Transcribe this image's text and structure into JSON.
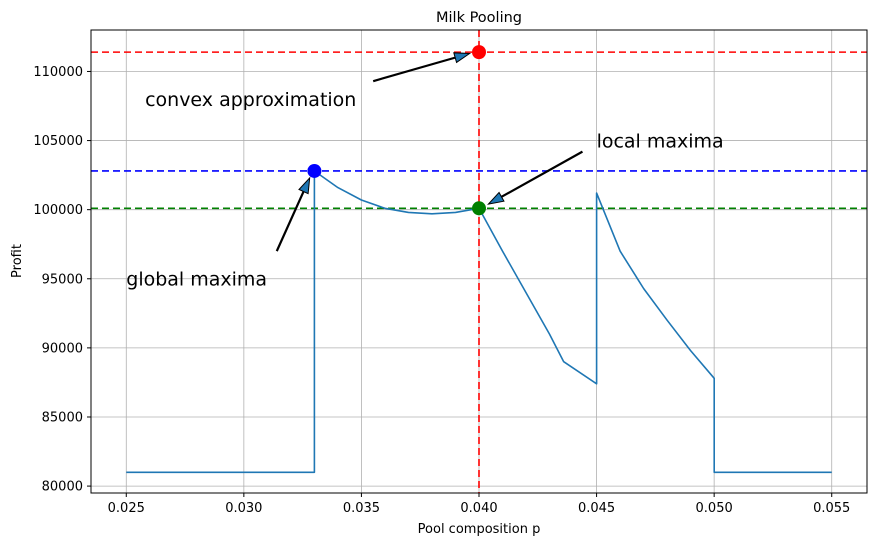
{
  "chart_data": {
    "type": "line",
    "title": "Milk Pooling",
    "xlabel": "Pool composition p",
    "ylabel": "Profit",
    "xlim": [
      0.0235,
      0.0565
    ],
    "ylim": [
      79500,
      113000
    ],
    "grid": true,
    "xticks": [
      0.025,
      0.03,
      0.035,
      0.04,
      0.045,
      0.05,
      0.055
    ],
    "xtick_labels": [
      "0.025",
      "0.030",
      "0.035",
      "0.040",
      "0.045",
      "0.050",
      "0.055"
    ],
    "yticks": [
      80000,
      85000,
      90000,
      95000,
      100000,
      105000,
      110000
    ],
    "ytick_labels": [
      "80000",
      "85000",
      "90000",
      "95000",
      "100000",
      "105000",
      "110000"
    ],
    "series": [
      {
        "color": "#1f77b4",
        "x": [
          0.025,
          0.033,
          0.033,
          0.034,
          0.035,
          0.036,
          0.037,
          0.038,
          0.039,
          0.04,
          0.041,
          0.042,
          0.043,
          0.0436,
          0.045,
          0.045,
          0.046,
          0.047,
          0.048,
          0.049,
          0.05,
          0.05,
          0.055
        ],
        "y": [
          81000,
          81000,
          102800,
          101600,
          100700,
          100100,
          99800,
          99700,
          99800,
          100100,
          97000,
          94000,
          91000,
          89000,
          87400,
          101200,
          97000,
          94300,
          92000,
          89800,
          87800,
          81000,
          81000
        ]
      }
    ],
    "reference_lines": [
      {
        "orientation": "horizontal",
        "y": 111400,
        "color": "#ff0000",
        "style": "dashed"
      },
      {
        "orientation": "horizontal",
        "y": 102800,
        "color": "#0000ff",
        "style": "dashed"
      },
      {
        "orientation": "horizontal",
        "y": 100100,
        "color": "#008000",
        "style": "dashed"
      },
      {
        "orientation": "vertical",
        "x": 0.04,
        "color": "#ff0000",
        "style": "dashed"
      }
    ],
    "points": [
      {
        "x": 0.04,
        "y": 111400,
        "color": "#ff0000"
      },
      {
        "x": 0.033,
        "y": 102800,
        "color": "#0000ff"
      },
      {
        "x": 0.04,
        "y": 100100,
        "color": "#008000"
      }
    ],
    "annotations": [
      {
        "text": "convex approximation",
        "text_x": 0.0258,
        "text_y": 107500,
        "arrow_from_x": 0.0355,
        "arrow_from_y": 109300,
        "arrow_to_x": 0.0396,
        "arrow_to_y": 111300
      },
      {
        "text": "local maxima",
        "text_x": 0.045,
        "text_y": 104500,
        "arrow_from_x": 0.0444,
        "arrow_from_y": 104200,
        "arrow_to_x": 0.0404,
        "arrow_to_y": 100400
      },
      {
        "text": "global maxima",
        "text_x": 0.025,
        "text_y": 94500,
        "arrow_from_x": 0.0314,
        "arrow_from_y": 97000,
        "arrow_to_x": 0.0328,
        "arrow_to_y": 102300
      }
    ]
  }
}
